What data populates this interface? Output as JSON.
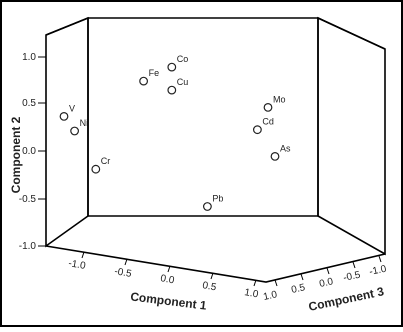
{
  "chart_data": {
    "type": "scatter",
    "projection": "3d",
    "xlabel": "Component 1",
    "ylabel": "Component 2",
    "zlabel": "Component 3",
    "xlim": [
      -1.0,
      1.0
    ],
    "ylim": [
      -1.0,
      1.0
    ],
    "zlim": [
      -1.0,
      1.0
    ],
    "xticks": [
      "-1.0",
      "-0.5",
      "0.0",
      "0.5",
      "1.0"
    ],
    "yticks": [
      "1.0",
      "0.5",
      "0.0",
      "-0.5",
      "-1.0"
    ],
    "zticks": [
      "1.0",
      "0.5",
      "0.0",
      "-0.5",
      "-1.0"
    ],
    "points": [
      {
        "label": "Co",
        "x": 0.1,
        "y": 1.0,
        "z": 0.8
      },
      {
        "label": "Cu",
        "x": 0.1,
        "y": 0.75,
        "z": 0.8
      },
      {
        "label": "Fe",
        "x": -0.2,
        "y": 0.8,
        "z": 0.7
      },
      {
        "label": "V",
        "x": -0.9,
        "y": 0.4,
        "z": 0.85
      },
      {
        "label": "Ni",
        "x": -0.8,
        "y": 0.25,
        "z": 0.85
      },
      {
        "label": "Cr",
        "x": -0.6,
        "y": -0.15,
        "z": 0.85
      },
      {
        "label": "Mo",
        "x": 0.6,
        "y": 0.3,
        "z": -0.4
      },
      {
        "label": "Cd",
        "x": 0.5,
        "y": 0.05,
        "z": -0.4
      },
      {
        "label": "As",
        "x": 0.7,
        "y": -0.2,
        "z": -0.3
      },
      {
        "label": "Pb",
        "x": 0.3,
        "y": -0.6,
        "z": 0.4
      }
    ]
  }
}
